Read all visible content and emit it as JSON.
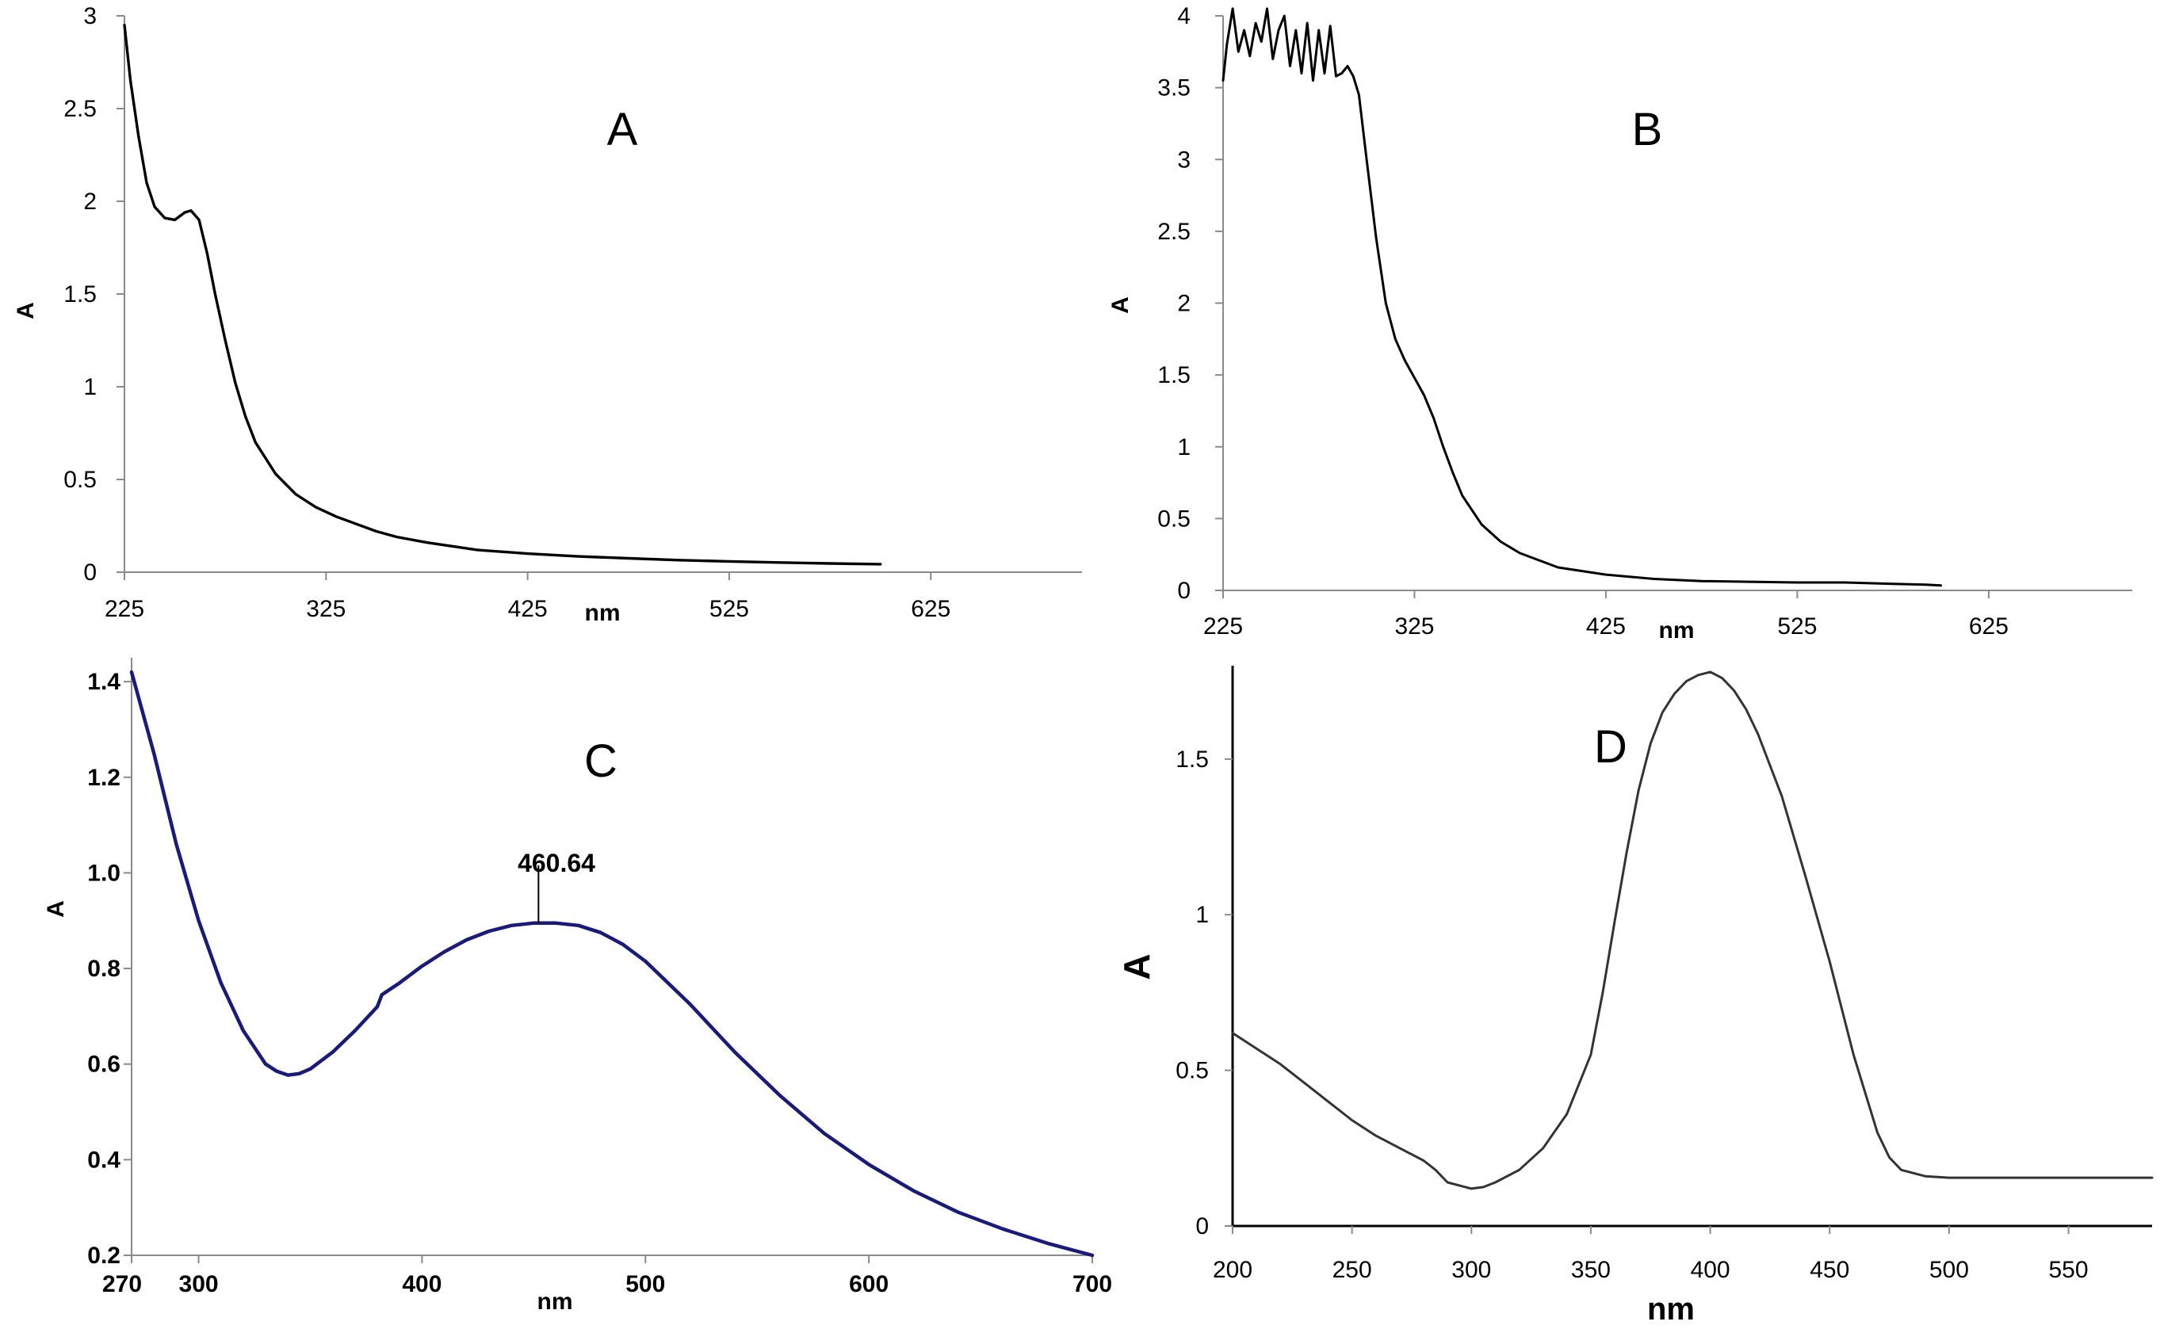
{
  "chart_data": [
    {
      "type": "line",
      "title": "A",
      "xlabel": "nm",
      "ylabel": "A",
      "xlim": [
        225,
        700
      ],
      "ylim": [
        0,
        3
      ],
      "x_ticks": [
        "225",
        "325",
        "425",
        "525",
        "625"
      ],
      "x_tick_values": [
        225,
        325,
        425,
        525,
        625
      ],
      "y_ticks": [
        "0",
        "0.5",
        "1",
        "1.5",
        "2",
        "2.5",
        "3"
      ],
      "y_tick_values": [
        0,
        0.5,
        1,
        1.5,
        2,
        2.5,
        3
      ],
      "color": "#000000",
      "series": [
        {
          "name": "A",
          "x": [
            225,
            228,
            232,
            236,
            240,
            245,
            250,
            255,
            258,
            262,
            266,
            270,
            275,
            280,
            285,
            290,
            300,
            310,
            320,
            330,
            340,
            350,
            360,
            375,
            400,
            425,
            450,
            475,
            500,
            525,
            550,
            575,
            600
          ],
          "y": [
            2.95,
            2.65,
            2.35,
            2.1,
            1.97,
            1.91,
            1.9,
            1.94,
            1.95,
            1.9,
            1.72,
            1.5,
            1.25,
            1.02,
            0.84,
            0.7,
            0.53,
            0.42,
            0.35,
            0.3,
            0.26,
            0.22,
            0.19,
            0.16,
            0.12,
            0.1,
            0.085,
            0.075,
            0.065,
            0.058,
            0.052,
            0.047,
            0.043
          ]
        }
      ]
    },
    {
      "type": "line",
      "title": "B",
      "xlabel": "nm",
      "ylabel": "A",
      "xlim": [
        225,
        700
      ],
      "ylim": [
        0,
        4
      ],
      "x_ticks": [
        "225",
        "325",
        "425",
        "525",
        "625"
      ],
      "x_tick_values": [
        225,
        325,
        425,
        525,
        625
      ],
      "y_ticks": [
        "0",
        "0.5",
        "1",
        "1.5",
        "2",
        "2.5",
        "3",
        "3.5",
        "4"
      ],
      "y_tick_values": [
        0,
        0.5,
        1,
        1.5,
        2,
        2.5,
        3,
        3.5,
        4
      ],
      "color": "#000000",
      "series": [
        {
          "name": "B",
          "x": [
            225,
            227,
            230,
            233,
            236,
            239,
            242,
            245,
            248,
            251,
            254,
            257,
            260,
            263,
            266,
            269,
            272,
            275,
            278,
            281,
            284,
            287,
            290,
            293,
            296,
            300,
            305,
            310,
            315,
            320,
            325,
            330,
            335,
            340,
            345,
            350,
            360,
            370,
            380,
            400,
            425,
            450,
            475,
            500,
            525,
            550,
            575,
            592,
            600
          ],
          "y": [
            3.55,
            3.8,
            4.05,
            3.75,
            3.9,
            3.72,
            3.95,
            3.82,
            4.05,
            3.7,
            3.9,
            4.0,
            3.65,
            3.9,
            3.6,
            3.95,
            3.55,
            3.9,
            3.6,
            3.93,
            3.58,
            3.6,
            3.65,
            3.58,
            3.45,
            3.0,
            2.45,
            2.0,
            1.75,
            1.6,
            1.48,
            1.36,
            1.2,
            1.0,
            0.82,
            0.66,
            0.46,
            0.34,
            0.26,
            0.16,
            0.11,
            0.08,
            0.065,
            0.06,
            0.055,
            0.055,
            0.045,
            0.04,
            0.035
          ]
        }
      ]
    },
    {
      "type": "line",
      "title": "C",
      "xlabel": "nm",
      "ylabel": "A",
      "xlim": [
        270,
        700
      ],
      "ylim": [
        0.2,
        1.45
      ],
      "x_ticks": [
        "270",
        "300",
        "400",
        "500",
        "600",
        "700"
      ],
      "x_tick_values": [
        270,
        300,
        400,
        500,
        600,
        700
      ],
      "y_ticks": [
        "0.2",
        "0.4",
        "0.6",
        "0.8",
        "1.0",
        "1.2",
        "1.4"
      ],
      "y_tick_values": [
        0.2,
        0.4,
        0.6,
        0.8,
        1.0,
        1.2,
        1.4
      ],
      "color": "#1a1a7a",
      "annotation": {
        "label": "460.64",
        "x": 460.64,
        "y": 0.895
      },
      "series": [
        {
          "name": "C",
          "x": [
            270,
            280,
            290,
            300,
            310,
            320,
            330,
            335,
            340,
            345,
            350,
            360,
            370,
            380,
            382,
            390,
            400,
            410,
            420,
            430,
            440,
            450,
            460,
            470,
            480,
            490,
            500,
            520,
            540,
            560,
            580,
            600,
            620,
            640,
            660,
            680,
            700
          ],
          "y": [
            1.42,
            1.25,
            1.06,
            0.9,
            0.77,
            0.67,
            0.6,
            0.585,
            0.577,
            0.58,
            0.59,
            0.625,
            0.67,
            0.72,
            0.745,
            0.77,
            0.805,
            0.835,
            0.86,
            0.878,
            0.89,
            0.895,
            0.895,
            0.89,
            0.875,
            0.85,
            0.815,
            0.725,
            0.625,
            0.535,
            0.455,
            0.39,
            0.335,
            0.29,
            0.255,
            0.225,
            0.2
          ]
        }
      ]
    },
    {
      "type": "line",
      "title": "D",
      "xlabel": "nm",
      "ylabel": "A",
      "xlim": [
        200,
        585
      ],
      "ylim": [
        0,
        1.8
      ],
      "x_ticks": [
        "200",
        "250",
        "300",
        "350",
        "400",
        "450",
        "500",
        "550"
      ],
      "x_tick_values": [
        200,
        250,
        300,
        350,
        400,
        450,
        500,
        550
      ],
      "y_ticks": [
        "0",
        "0.5",
        "1",
        "1.5"
      ],
      "y_tick_values": [
        0,
        0.5,
        1,
        1.5
      ],
      "color": "#333333",
      "series": [
        {
          "name": "D",
          "x": [
            200,
            210,
            220,
            230,
            240,
            250,
            260,
            270,
            280,
            285,
            290,
            295,
            300,
            305,
            310,
            320,
            330,
            340,
            350,
            355,
            360,
            365,
            370,
            375,
            380,
            385,
            390,
            395,
            400,
            405,
            410,
            415,
            420,
            430,
            440,
            450,
            460,
            470,
            475,
            480,
            490,
            500,
            520,
            540,
            560,
            585
          ],
          "y": [
            0.62,
            0.57,
            0.52,
            0.46,
            0.4,
            0.34,
            0.29,
            0.25,
            0.21,
            0.18,
            0.14,
            0.13,
            0.12,
            0.125,
            0.14,
            0.18,
            0.25,
            0.36,
            0.55,
            0.75,
            0.98,
            1.2,
            1.4,
            1.55,
            1.65,
            1.71,
            1.75,
            1.77,
            1.78,
            1.76,
            1.72,
            1.66,
            1.58,
            1.38,
            1.12,
            0.85,
            0.55,
            0.3,
            0.22,
            0.18,
            0.16,
            0.155,
            0.155,
            0.155,
            0.155,
            0.155
          ]
        }
      ]
    }
  ]
}
